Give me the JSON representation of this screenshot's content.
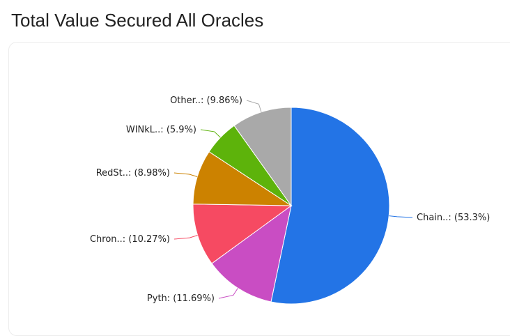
{
  "page": {
    "title": "Total Value Secured All Oracles"
  },
  "chart_data": {
    "type": "pie",
    "title": "",
    "slices": [
      {
        "name": "Chain..",
        "label": "Chain..: (53.3%)",
        "value": 53.3,
        "color": "#2374e6"
      },
      {
        "name": "Pyth",
        "label": "Pyth: (11.69%)",
        "value": 11.69,
        "color": "#c94dc3"
      },
      {
        "name": "Chron..",
        "label": "Chron..: (10.27%)",
        "value": 10.27,
        "color": "#f64a62"
      },
      {
        "name": "RedSt..",
        "label": "RedSt..: (8.98%)",
        "value": 8.98,
        "color": "#cc8200"
      },
      {
        "name": "WINkL..",
        "label": "WINkL..: (5.9%)",
        "value": 5.9,
        "color": "#5db30b"
      },
      {
        "name": "Other..",
        "label": "Other..: (9.86%)",
        "value": 9.86,
        "color": "#a9a9a9"
      }
    ]
  }
}
